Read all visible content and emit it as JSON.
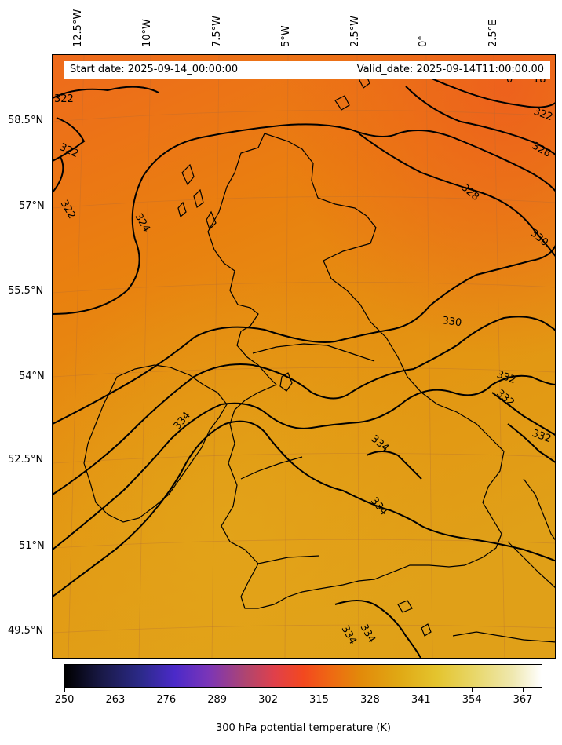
{
  "header": {
    "start_date": "Start date: 2025-09-14_00:00:00",
    "valid_date": "Valid_date: 2025-09-14T11:00:00.00"
  },
  "longitude_labels": [
    "12.5°W",
    "10°W",
    "7.5°W",
    "5°W",
    "2.5°W",
    "0°",
    "2.5°E"
  ],
  "latitude_labels": [
    "58.5°N",
    "57°N",
    "55.5°N",
    "54°N",
    "52.5°N",
    "51°N",
    "49.5°N"
  ],
  "contour_labels": [
    "322",
    "322",
    "322",
    "324",
    "326",
    "322",
    "328",
    "330",
    "330",
    "332",
    "332",
    "332",
    "334",
    "334",
    "334",
    "334",
    "334",
    "18",
    "0"
  ],
  "colorbar": {
    "ticks": [
      "250",
      "263",
      "276",
      "289",
      "302",
      "315",
      "328",
      "341",
      "354",
      "367"
    ],
    "title": "300 hPa potential temperature (K)",
    "colormap": "CMRmap",
    "range": [
      250,
      372
    ]
  },
  "colors": {
    "warm_north": "#ee6a1c",
    "mid": "#e8860e",
    "warm_south": "#e0a018",
    "contour": "#000000"
  }
}
